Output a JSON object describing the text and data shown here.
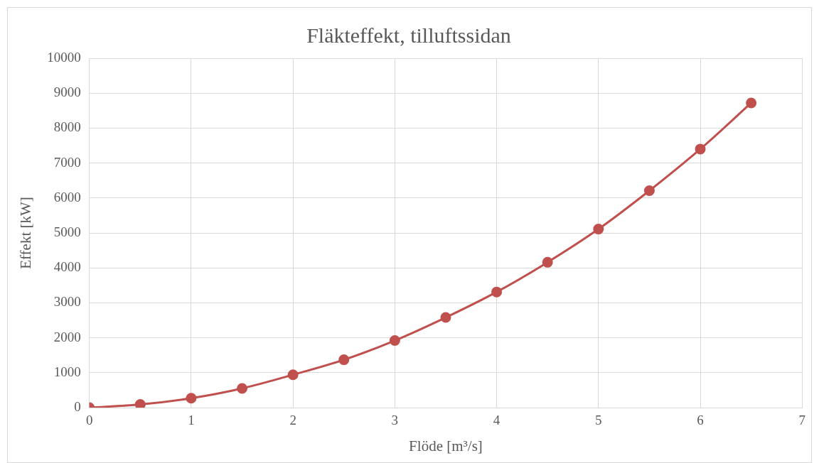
{
  "chart_data": {
    "type": "line",
    "title": "Fläkteffekt, tilluftssidan",
    "xlabel": "Flöde [m³/s]",
    "ylabel": "Effekt [kW]",
    "x": [
      0,
      0.5,
      1,
      1.5,
      2,
      2.5,
      3,
      3.5,
      4,
      4.5,
      5,
      5.5,
      6,
      6.5
    ],
    "series": [
      {
        "color": "#c0504d",
        "values": [
          0,
          90,
          270,
          550,
          940,
          1370,
          1920,
          2580,
          3310,
          4160,
          5110,
          6210,
          7400,
          8720
        ]
      }
    ],
    "xlim": [
      0,
      7
    ],
    "xticks": [
      0,
      1,
      2,
      3,
      4,
      5,
      6,
      7
    ],
    "ylim": [
      0,
      10000
    ],
    "yticks": [
      0,
      1000,
      2000,
      3000,
      4000,
      5000,
      6000,
      7000,
      8000,
      9000,
      10000
    ],
    "grid": true,
    "legend": false,
    "marker": "circle",
    "line_style": "solid"
  }
}
